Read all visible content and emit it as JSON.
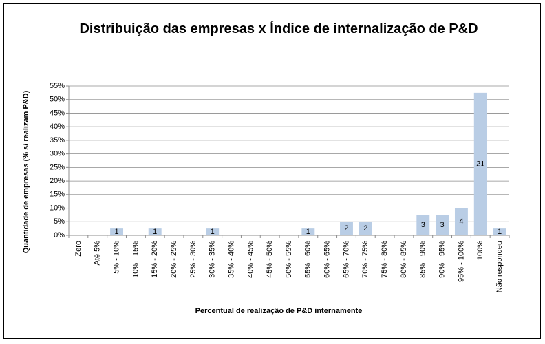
{
  "chart_data": {
    "type": "bar",
    "title": "Distribuição das empresas x Índice de internalização de P&D",
    "x_label": "Percentual de realização de P&D internamente",
    "y_label": "Quantidade de empresas (% s/ realizam P&D)",
    "categories": [
      "Zero",
      "Até 5%",
      "5% - 10%",
      "10% - 15%",
      "15% - 20%",
      "20% - 25%",
      "25% - 30%",
      "30% - 35%",
      "35% - 40%",
      "40% - 45%",
      "45% - 50%",
      "50% - 55%",
      "55% - 60%",
      "60% - 65%",
      "65% - 70%",
      "70% - 75%",
      "75% - 80%",
      "80% - 85%",
      "85% - 90%",
      "90% - 95%",
      "95% - 100%",
      "100%",
      "Não respondeu"
    ],
    "values": [
      0,
      0,
      2.5,
      0,
      2.5,
      0,
      0,
      2.5,
      0,
      0,
      0,
      0,
      2.5,
      0,
      5,
      5,
      0,
      0,
      7.5,
      7.5,
      10,
      52.5,
      2.5
    ],
    "counts": [
      null,
      null,
      1,
      null,
      1,
      null,
      null,
      1,
      null,
      null,
      null,
      null,
      1,
      null,
      2,
      2,
      null,
      null,
      3,
      3,
      4,
      21,
      1
    ],
    "color": "#b9cde5",
    "ylim": [
      0,
      55
    ],
    "yticks": [
      {
        "value": 0,
        "label": "0%"
      },
      {
        "value": 5,
        "label": "5%"
      },
      {
        "value": 10,
        "label": "10%"
      },
      {
        "value": 15,
        "label": "15%"
      },
      {
        "value": 20,
        "label": "20%"
      },
      {
        "value": 25,
        "label": "25%"
      },
      {
        "value": 30,
        "label": "30%"
      },
      {
        "value": 35,
        "label": "35%"
      },
      {
        "value": 40,
        "label": "40%"
      },
      {
        "value": 45,
        "label": "45%"
      },
      {
        "value": 50,
        "label": "50%"
      },
      {
        "value": 55,
        "label": "55%"
      }
    ],
    "grid": true
  }
}
